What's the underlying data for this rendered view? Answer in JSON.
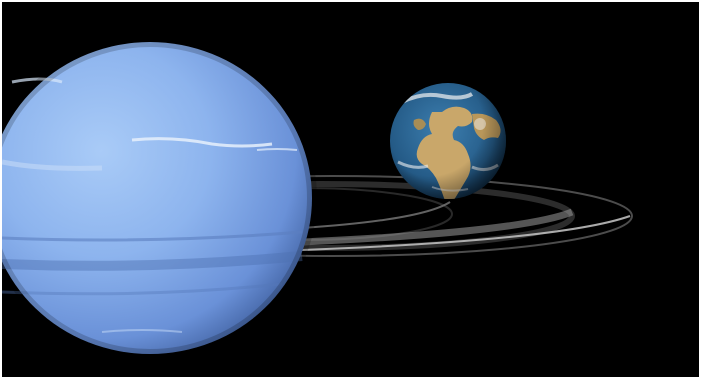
{
  "image": {
    "subject": "",
    "colors": {
      "background": "#000000",
      "frame": "#ffffff",
      "planet_light": "#9cc0f2",
      "planet_mid": "#7aa3e6",
      "planet_dark": "#3f5f9f",
      "ring": "#6e6e6e",
      "earth_ocean": "#2a5f8f",
      "earth_land": "#c8a866",
      "earth_cloud": "#f2f2f2"
    }
  }
}
